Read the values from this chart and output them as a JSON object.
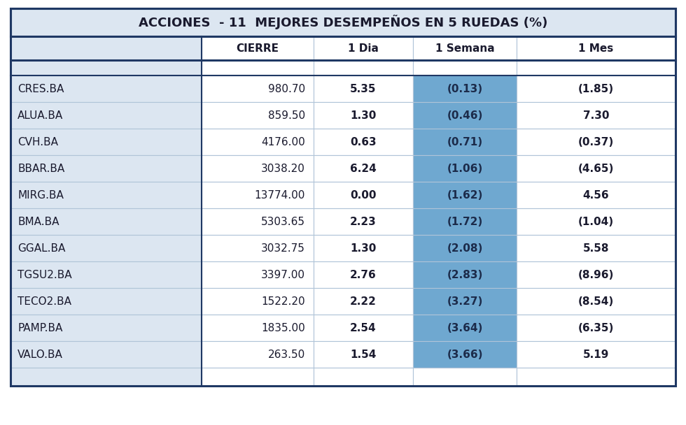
{
  "title": "ACCIONES  - 11  MEJORES DESEMPEÑOS EN 5 RUEDAS (%)",
  "columns": [
    "",
    "CIERRE",
    "1 Dia",
    "1 Semana",
    "1 Mes"
  ],
  "rows": [
    [
      "CRES.BA",
      "980.70",
      "5.35",
      "(0.13)",
      "(1.85)"
    ],
    [
      "ALUA.BA",
      "859.50",
      "1.30",
      "(0.46)",
      "7.30"
    ],
    [
      "CVH.BA",
      "4176.00",
      "0.63",
      "(0.71)",
      "(0.37)"
    ],
    [
      "BBAR.BA",
      "3038.20",
      "6.24",
      "(1.06)",
      "(4.65)"
    ],
    [
      "MIRG.BA",
      "13774.00",
      "0.00",
      "(1.62)",
      "4.56"
    ],
    [
      "BMA.BA",
      "5303.65",
      "2.23",
      "(1.72)",
      "(1.04)"
    ],
    [
      "GGAL.BA",
      "3032.75",
      "1.30",
      "(2.08)",
      "5.58"
    ],
    [
      "TGSU2.BA",
      "3397.00",
      "2.76",
      "(2.83)",
      "(8.96)"
    ],
    [
      "TECO2.BA",
      "1522.20",
      "2.22",
      "(3.27)",
      "(8.54)"
    ],
    [
      "PAMP.BA",
      "1835.00",
      "2.54",
      "(3.64)",
      "(6.35)"
    ],
    [
      "VALO.BA",
      "263.50",
      "1.54",
      "(3.66)",
      "5.19"
    ]
  ],
  "title_bg": "#dce6f1",
  "header_bg": "#ffffff",
  "row_bg": "#ffffff",
  "col0_bg": "#dce6f1",
  "semana_bg": "#6fa8d0",
  "outer_border": "#1f3864",
  "inner_border": "#b0c4d8",
  "title_fontsize": 13,
  "header_fontsize": 11,
  "data_fontsize": 11,
  "text_color": "#1a1a2e"
}
